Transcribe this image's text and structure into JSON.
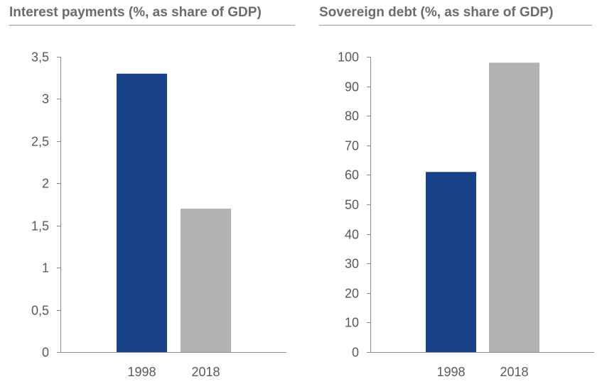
{
  "chart_data": [
    {
      "type": "bar",
      "title": "Interest payments (%, as share of GDP)",
      "xlabel": "",
      "ylabel": "",
      "categories": [
        "1998",
        "2018"
      ],
      "values": [
        3.3,
        1.7
      ],
      "bar_colors": [
        "#17428a",
        "#b2b2b2"
      ],
      "ylim": [
        0,
        3.5
      ],
      "yticks": [
        0,
        0.5,
        1,
        1.5,
        2,
        2.5,
        3,
        3.5
      ],
      "ytick_labels": [
        "0",
        "0,5",
        "1",
        "1,5",
        "2",
        "2,5",
        "3",
        "3,5"
      ],
      "grid": false,
      "legend": "none"
    },
    {
      "type": "bar",
      "title": "Sovereign debt (%, as share of GDP)",
      "xlabel": "",
      "ylabel": "",
      "categories": [
        "1998",
        "2018"
      ],
      "values": [
        61,
        98
      ],
      "bar_colors": [
        "#17428a",
        "#b2b2b2"
      ],
      "ylim": [
        0,
        100
      ],
      "yticks": [
        0,
        10,
        20,
        30,
        40,
        50,
        60,
        70,
        80,
        90,
        100
      ],
      "ytick_labels": [
        "0",
        "10",
        "20",
        "30",
        "40",
        "50",
        "60",
        "70",
        "80",
        "90",
        "100"
      ],
      "grid": false,
      "legend": "none"
    }
  ]
}
